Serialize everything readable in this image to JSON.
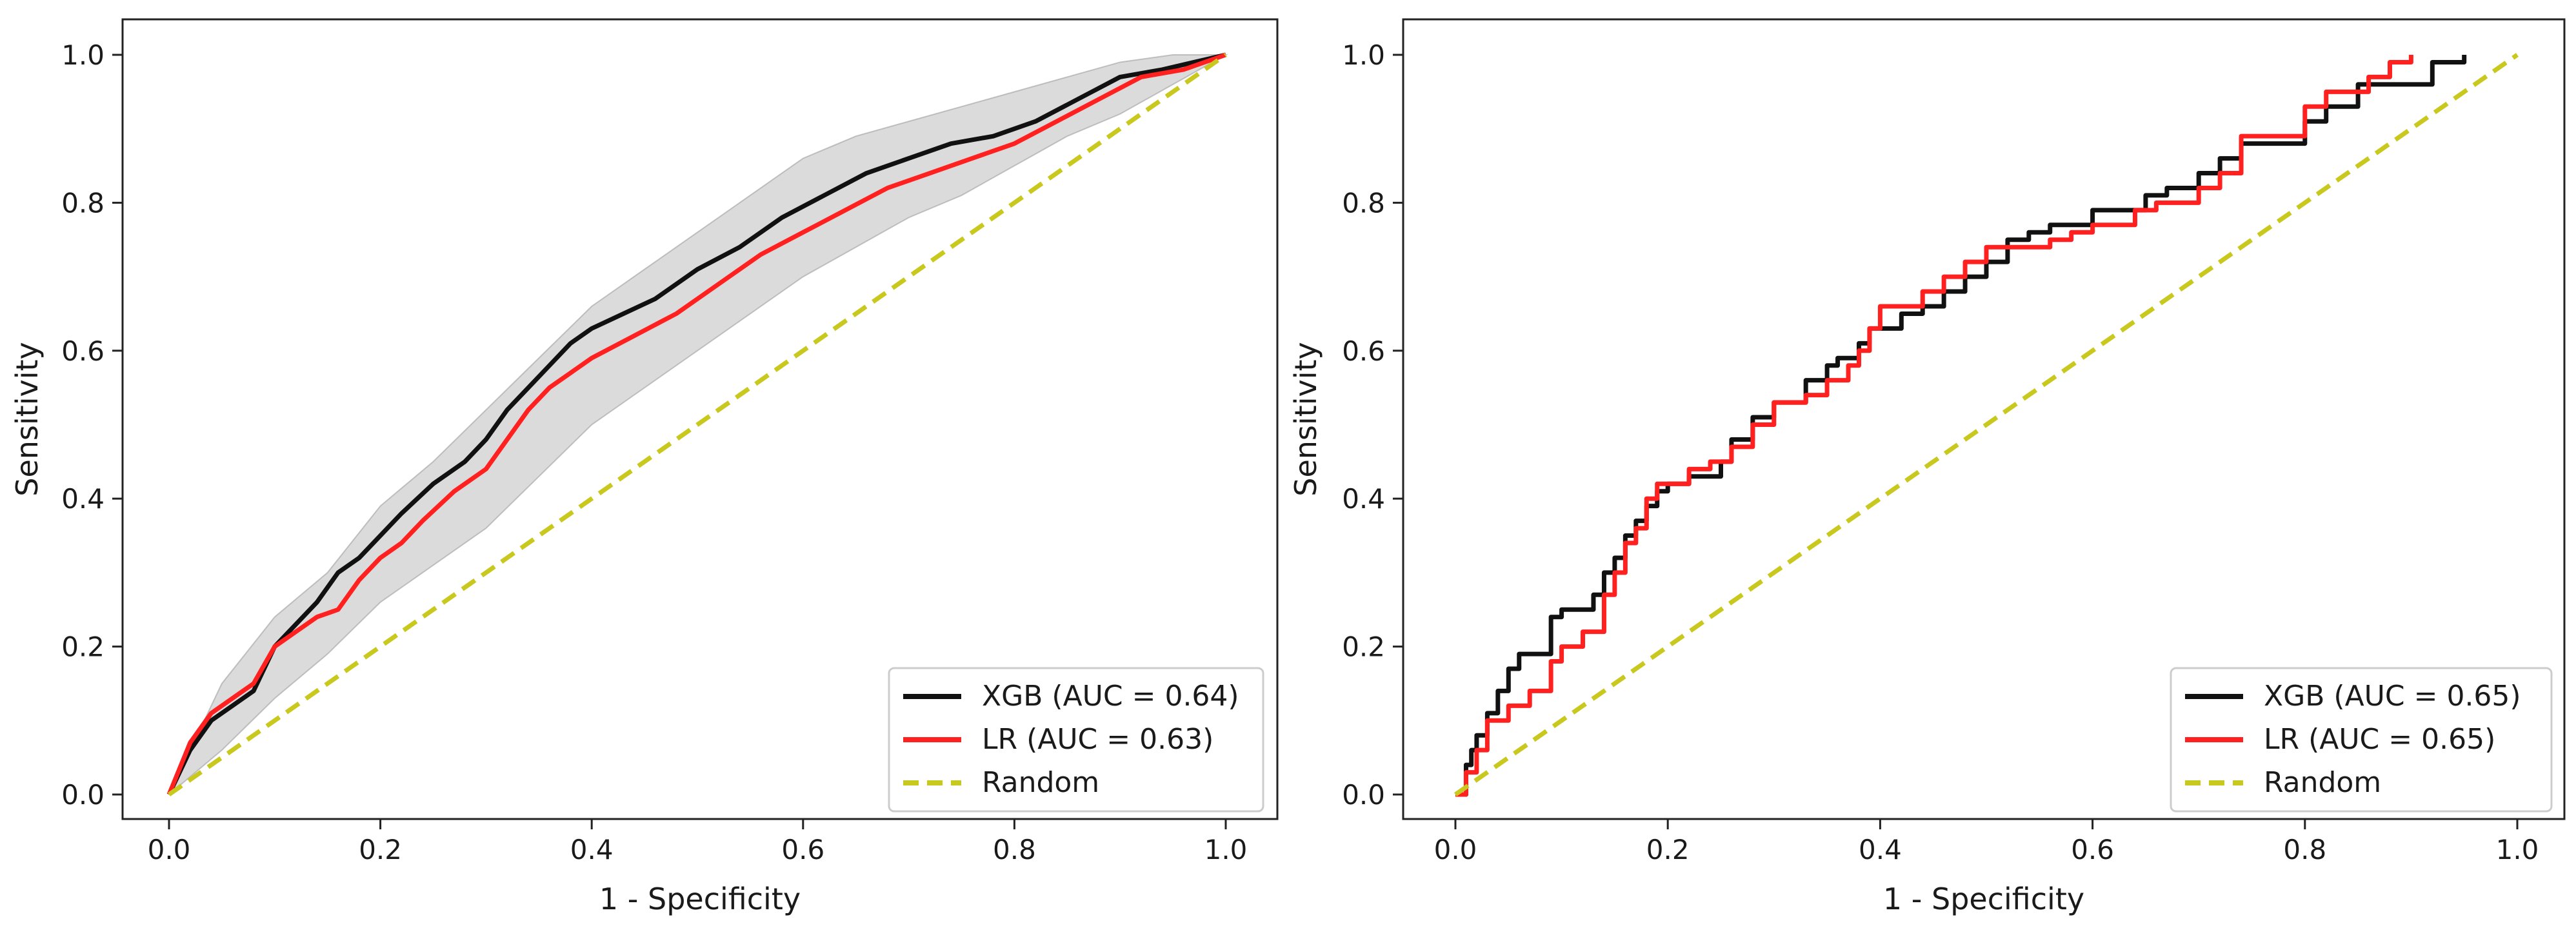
{
  "chart_data": [
    {
      "type": "line",
      "xlabel": "1 - Specificity",
      "ylabel": "Sensitivity",
      "xlim": [
        0,
        1
      ],
      "ylim": [
        0,
        1
      ],
      "xticks": [
        "0.0",
        "0.2",
        "0.4",
        "0.6",
        "0.8",
        "1.0"
      ],
      "yticks": [
        "0.0",
        "0.2",
        "0.4",
        "0.6",
        "0.8",
        "1.0"
      ],
      "grid": false,
      "legend_position": "bottom-right",
      "series": [
        {
          "name": "XGB (AUC = 0.64)",
          "color": "#111111",
          "style": "solid",
          "x": [
            0.0,
            0.02,
            0.04,
            0.06,
            0.08,
            0.1,
            0.12,
            0.14,
            0.16,
            0.18,
            0.2,
            0.22,
            0.25,
            0.28,
            0.3,
            0.32,
            0.34,
            0.36,
            0.38,
            0.4,
            0.43,
            0.46,
            0.5,
            0.54,
            0.58,
            0.62,
            0.66,
            0.7,
            0.74,
            0.78,
            0.82,
            0.86,
            0.9,
            0.94,
            0.97,
            1.0
          ],
          "y": [
            0.0,
            0.06,
            0.1,
            0.12,
            0.14,
            0.2,
            0.23,
            0.26,
            0.3,
            0.32,
            0.35,
            0.38,
            0.42,
            0.45,
            0.48,
            0.52,
            0.55,
            0.58,
            0.61,
            0.63,
            0.65,
            0.67,
            0.71,
            0.74,
            0.78,
            0.81,
            0.84,
            0.86,
            0.88,
            0.89,
            0.91,
            0.94,
            0.97,
            0.98,
            0.99,
            1.0
          ]
        },
        {
          "name": "LR (AUC = 0.63)",
          "color": "#ff2020",
          "style": "solid",
          "x": [
            0.0,
            0.02,
            0.04,
            0.06,
            0.08,
            0.1,
            0.12,
            0.14,
            0.16,
            0.18,
            0.2,
            0.22,
            0.24,
            0.27,
            0.3,
            0.32,
            0.34,
            0.36,
            0.38,
            0.4,
            0.44,
            0.48,
            0.52,
            0.56,
            0.6,
            0.64,
            0.68,
            0.72,
            0.76,
            0.8,
            0.84,
            0.88,
            0.92,
            0.96,
            1.0
          ],
          "y": [
            0.0,
            0.07,
            0.11,
            0.13,
            0.15,
            0.2,
            0.22,
            0.24,
            0.25,
            0.29,
            0.32,
            0.34,
            0.37,
            0.41,
            0.44,
            0.48,
            0.52,
            0.55,
            0.57,
            0.59,
            0.62,
            0.65,
            0.69,
            0.73,
            0.76,
            0.79,
            0.82,
            0.84,
            0.86,
            0.88,
            0.91,
            0.94,
            0.97,
            0.98,
            1.0
          ]
        },
        {
          "name": "Random",
          "color": "#c8c81e",
          "style": "dashed",
          "x": [
            0.0,
            1.0
          ],
          "y": [
            0.0,
            1.0
          ]
        }
      ],
      "confidence_band": {
        "color": "#bdbdbd",
        "x": [
          0.0,
          0.05,
          0.1,
          0.15,
          0.2,
          0.25,
          0.3,
          0.35,
          0.4,
          0.45,
          0.5,
          0.55,
          0.6,
          0.65,
          0.7,
          0.75,
          0.8,
          0.85,
          0.9,
          0.95,
          1.0
        ],
        "lower": [
          0.0,
          0.06,
          0.13,
          0.19,
          0.26,
          0.31,
          0.36,
          0.43,
          0.5,
          0.55,
          0.6,
          0.65,
          0.7,
          0.74,
          0.78,
          0.81,
          0.85,
          0.89,
          0.92,
          0.96,
          1.0
        ],
        "upper": [
          0.0,
          0.15,
          0.24,
          0.3,
          0.39,
          0.45,
          0.52,
          0.59,
          0.66,
          0.71,
          0.76,
          0.81,
          0.86,
          0.89,
          0.91,
          0.93,
          0.95,
          0.97,
          0.99,
          1.0,
          1.0
        ]
      }
    },
    {
      "type": "line",
      "xlabel": "1 - Specificity",
      "ylabel": "Sensitivity",
      "xlim": [
        0,
        1
      ],
      "ylim": [
        0,
        1
      ],
      "xticks": [
        "0.0",
        "0.2",
        "0.4",
        "0.6",
        "0.8",
        "1.0"
      ],
      "yticks": [
        "0.0",
        "0.2",
        "0.4",
        "0.6",
        "0.8",
        "1.0"
      ],
      "grid": false,
      "legend_position": "bottom-right",
      "series": [
        {
          "name": "XGB (AUC = 0.65)",
          "color": "#111111",
          "style": "step",
          "x": [
            0.0,
            0.01,
            0.015,
            0.02,
            0.03,
            0.04,
            0.05,
            0.06,
            0.09,
            0.1,
            0.13,
            0.14,
            0.15,
            0.16,
            0.17,
            0.18,
            0.19,
            0.2,
            0.22,
            0.25,
            0.26,
            0.28,
            0.3,
            0.33,
            0.35,
            0.36,
            0.38,
            0.39,
            0.42,
            0.44,
            0.46,
            0.48,
            0.5,
            0.52,
            0.54,
            0.56,
            0.6,
            0.65,
            0.67,
            0.7,
            0.72,
            0.74,
            0.8,
            0.82,
            0.85,
            0.92,
            0.95
          ],
          "y": [
            0.0,
            0.04,
            0.06,
            0.08,
            0.11,
            0.14,
            0.17,
            0.19,
            0.24,
            0.25,
            0.27,
            0.3,
            0.32,
            0.35,
            0.37,
            0.39,
            0.41,
            0.42,
            0.43,
            0.45,
            0.48,
            0.51,
            0.53,
            0.56,
            0.58,
            0.59,
            0.61,
            0.63,
            0.65,
            0.66,
            0.68,
            0.7,
            0.72,
            0.75,
            0.76,
            0.77,
            0.79,
            0.81,
            0.82,
            0.84,
            0.86,
            0.88,
            0.91,
            0.93,
            0.96,
            0.99,
            1.0
          ]
        },
        {
          "name": "LR (AUC = 0.65)",
          "color": "#ff2020",
          "style": "step",
          "x": [
            0.0,
            0.01,
            0.02,
            0.03,
            0.05,
            0.07,
            0.09,
            0.1,
            0.12,
            0.14,
            0.15,
            0.16,
            0.17,
            0.18,
            0.19,
            0.22,
            0.24,
            0.26,
            0.28,
            0.3,
            0.33,
            0.35,
            0.37,
            0.38,
            0.39,
            0.4,
            0.44,
            0.46,
            0.48,
            0.5,
            0.52,
            0.54,
            0.56,
            0.58,
            0.6,
            0.64,
            0.66,
            0.7,
            0.72,
            0.74,
            0.8,
            0.82,
            0.86,
            0.88,
            0.9
          ],
          "y": [
            0.0,
            0.03,
            0.06,
            0.1,
            0.12,
            0.14,
            0.18,
            0.2,
            0.22,
            0.27,
            0.3,
            0.34,
            0.36,
            0.4,
            0.42,
            0.44,
            0.45,
            0.47,
            0.5,
            0.53,
            0.54,
            0.56,
            0.58,
            0.6,
            0.63,
            0.66,
            0.68,
            0.7,
            0.72,
            0.74,
            0.74,
            0.74,
            0.75,
            0.76,
            0.77,
            0.79,
            0.8,
            0.82,
            0.84,
            0.89,
            0.93,
            0.95,
            0.97,
            0.99,
            1.0
          ]
        },
        {
          "name": "Random",
          "color": "#c8c81e",
          "style": "dashed",
          "x": [
            0.0,
            1.0
          ],
          "y": [
            0.0,
            1.0
          ]
        }
      ]
    }
  ]
}
